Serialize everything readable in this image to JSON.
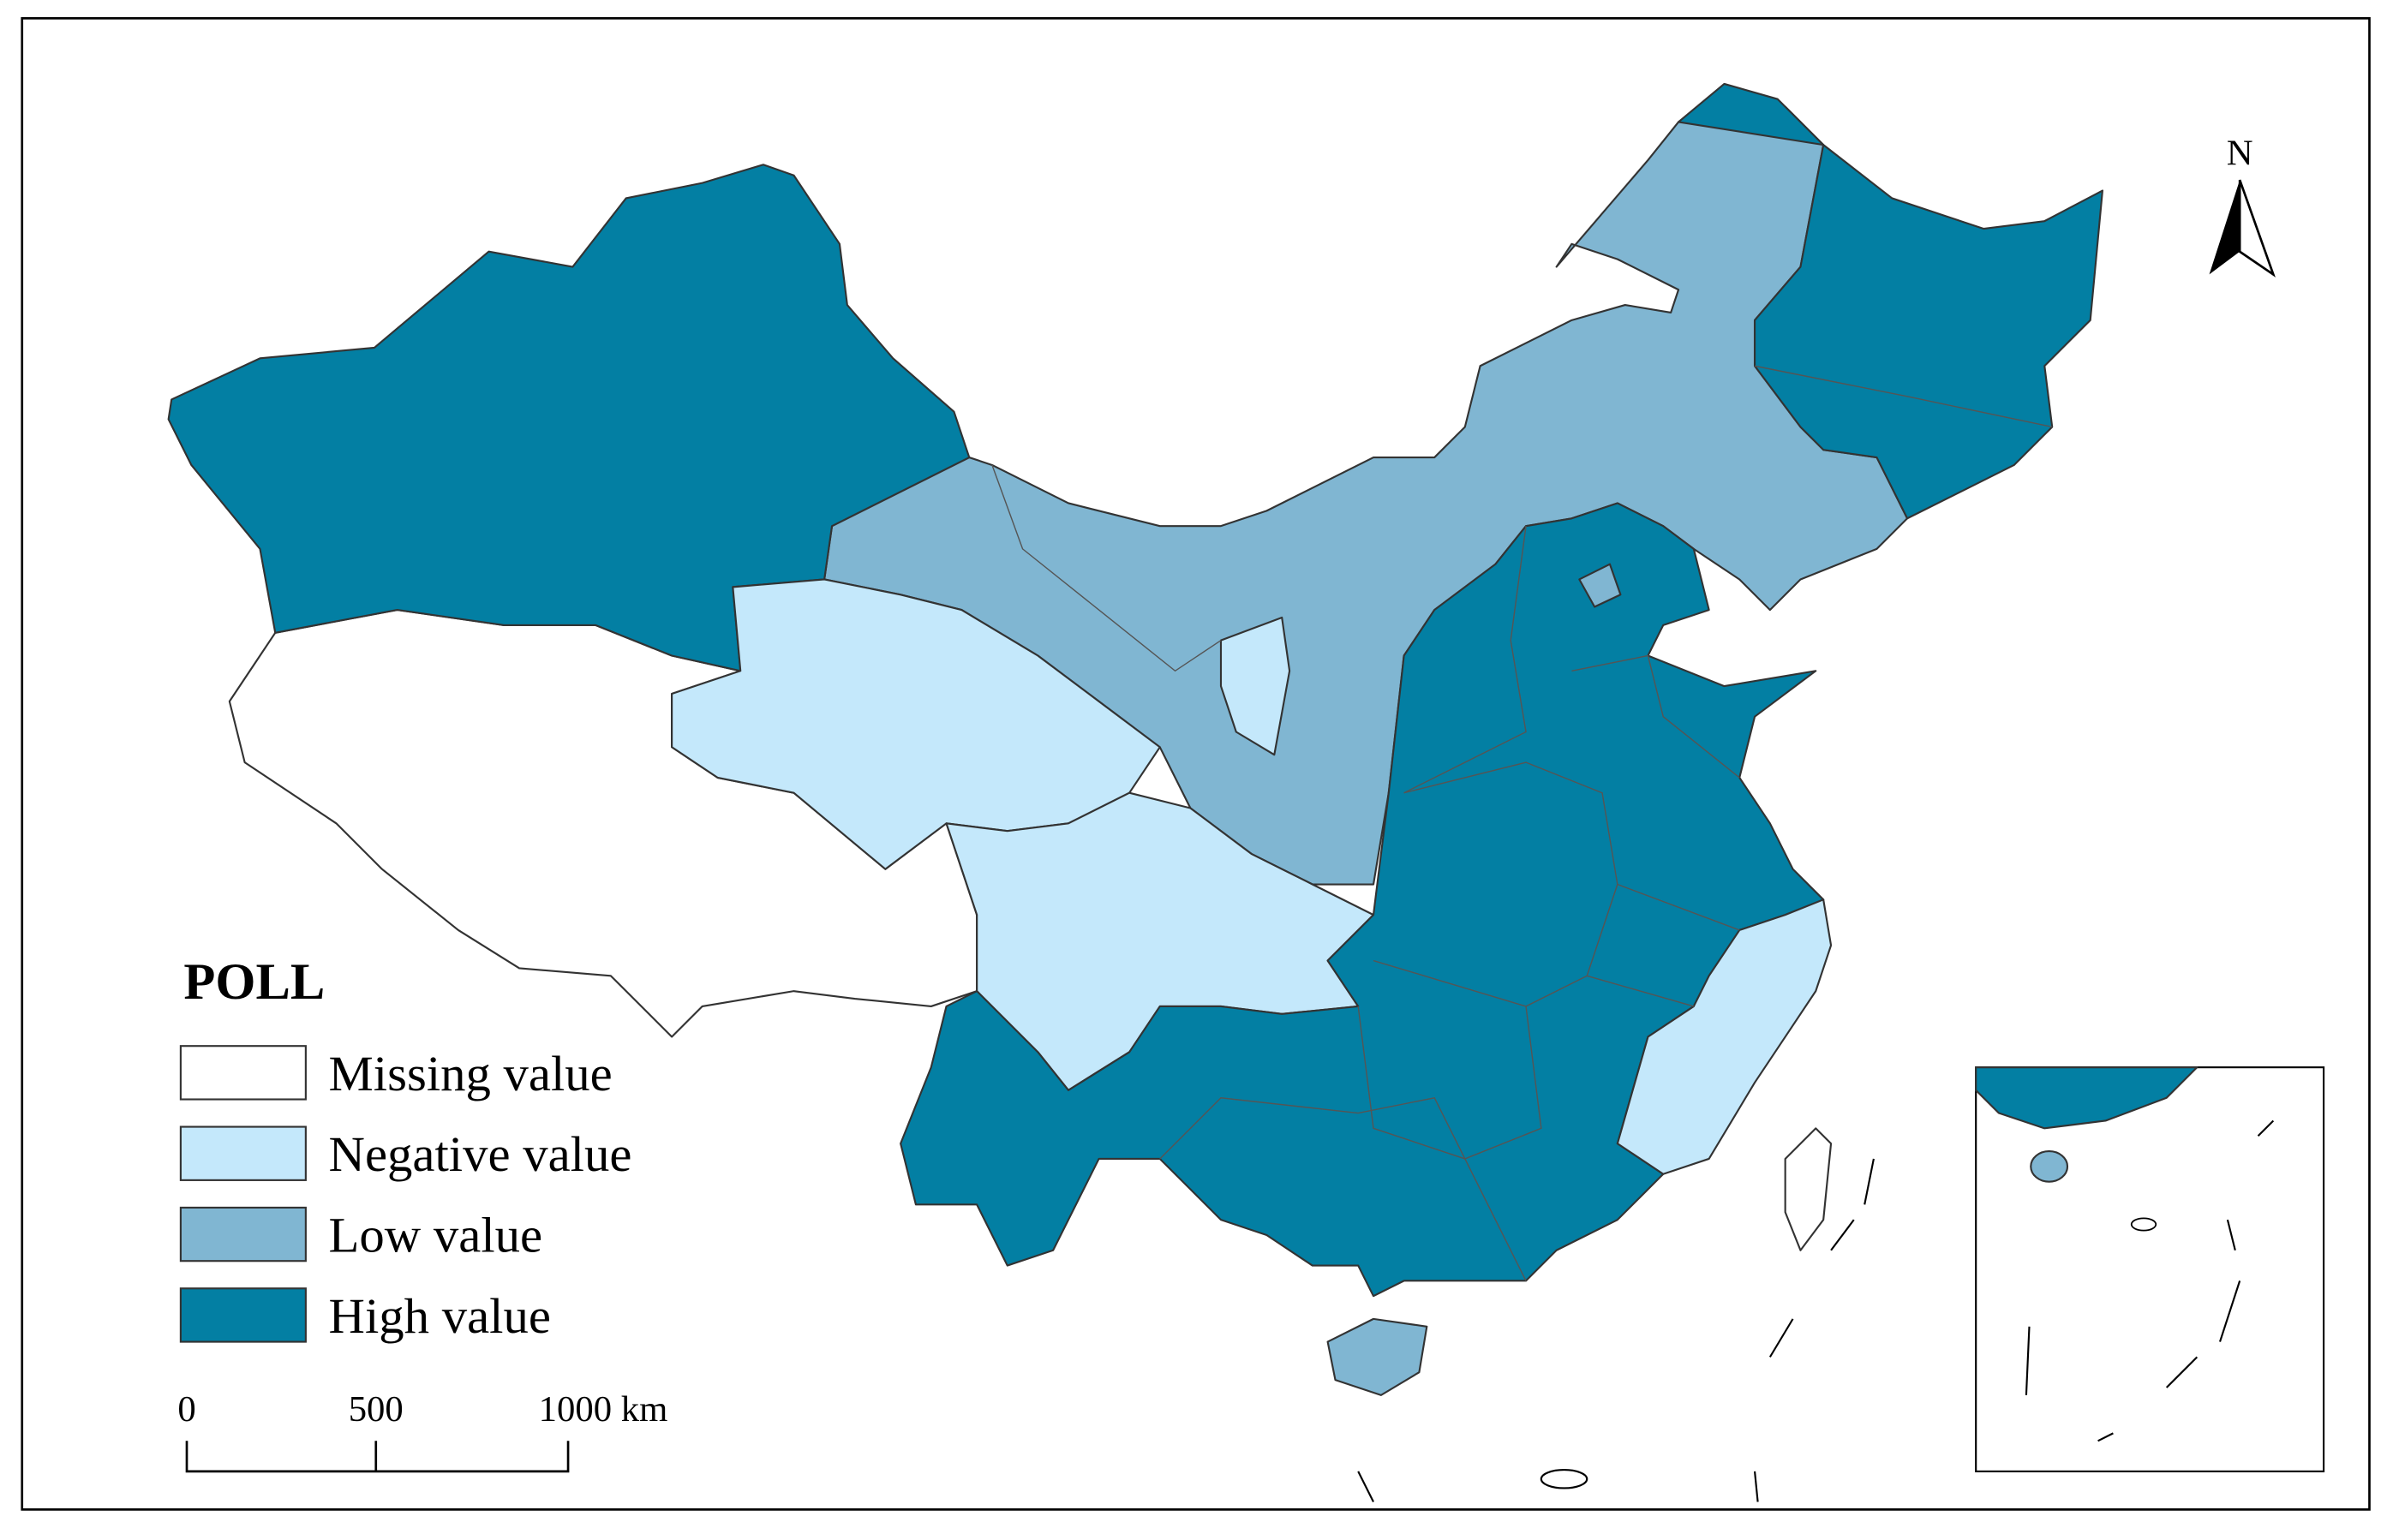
{
  "legend": {
    "title": "POLL",
    "items": [
      {
        "label": "Missing value",
        "color": "#ffffff"
      },
      {
        "label": "Negative value",
        "color": "#c4e8fb"
      },
      {
        "label": "Low value",
        "color": "#80b6d2"
      },
      {
        "label": "High value",
        "color": "#037fa3"
      }
    ]
  },
  "scale_bar": {
    "labels": [
      "0",
      "500",
      "1000 km"
    ]
  },
  "north_arrow": {
    "label": "N"
  }
}
